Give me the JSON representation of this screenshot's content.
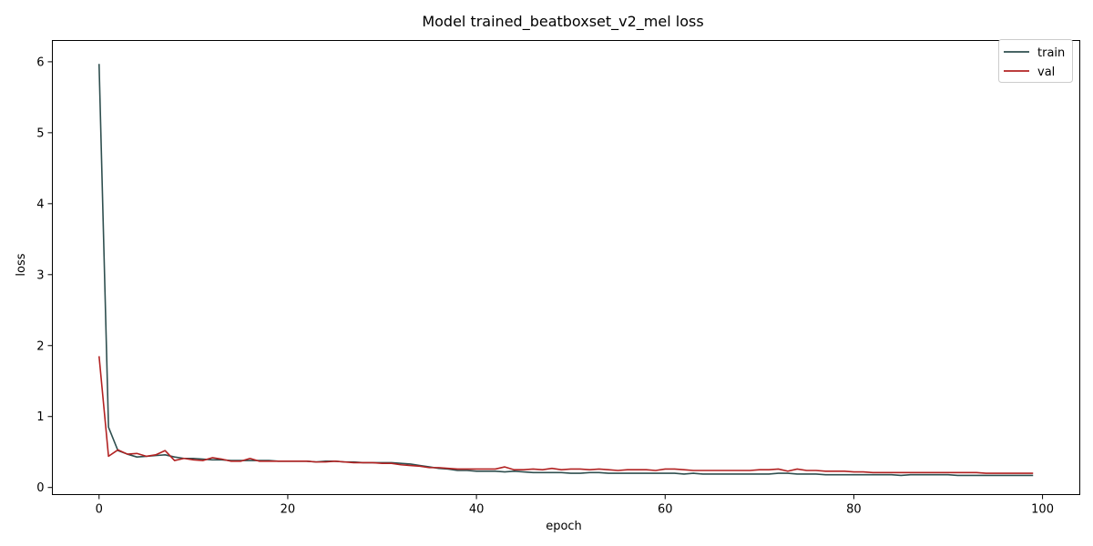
{
  "chart_data": {
    "type": "line",
    "title": "Model trained_beatboxset_v2_mel loss",
    "xlabel": "epoch",
    "ylabel": "loss",
    "xlim": [
      -4.95,
      103.95
    ],
    "ylim": [
      -0.1,
      6.3
    ],
    "xticks": [
      0,
      20,
      40,
      60,
      80,
      100
    ],
    "yticks": [
      0,
      1,
      2,
      3,
      4,
      5,
      6
    ],
    "legend_position": "top-right",
    "grid": false,
    "series": [
      {
        "name": "train",
        "color": "#2f4f4f",
        "values": [
          5.97,
          0.85,
          0.52,
          0.47,
          0.43,
          0.44,
          0.45,
          0.46,
          0.43,
          0.41,
          0.41,
          0.4,
          0.39,
          0.39,
          0.38,
          0.38,
          0.38,
          0.38,
          0.38,
          0.37,
          0.37,
          0.37,
          0.37,
          0.36,
          0.37,
          0.37,
          0.36,
          0.36,
          0.35,
          0.35,
          0.35,
          0.35,
          0.34,
          0.33,
          0.31,
          0.29,
          0.27,
          0.26,
          0.24,
          0.24,
          0.23,
          0.23,
          0.23,
          0.22,
          0.23,
          0.22,
          0.21,
          0.21,
          0.21,
          0.21,
          0.2,
          0.2,
          0.21,
          0.21,
          0.2,
          0.2,
          0.2,
          0.2,
          0.2,
          0.2,
          0.2,
          0.2,
          0.19,
          0.2,
          0.19,
          0.19,
          0.19,
          0.19,
          0.19,
          0.19,
          0.19,
          0.19,
          0.2,
          0.2,
          0.19,
          0.19,
          0.19,
          0.18,
          0.18,
          0.18,
          0.18,
          0.18,
          0.18,
          0.18,
          0.18,
          0.17,
          0.18,
          0.18,
          0.18,
          0.18,
          0.18,
          0.17,
          0.17,
          0.17,
          0.17,
          0.17,
          0.17,
          0.17,
          0.17,
          0.17
        ]
      },
      {
        "name": "val",
        "color": "#b22222",
        "values": [
          1.85,
          0.44,
          0.53,
          0.47,
          0.48,
          0.44,
          0.46,
          0.52,
          0.38,
          0.41,
          0.39,
          0.38,
          0.42,
          0.4,
          0.37,
          0.37,
          0.41,
          0.37,
          0.37,
          0.37,
          0.37,
          0.37,
          0.37,
          0.36,
          0.36,
          0.37,
          0.36,
          0.35,
          0.35,
          0.35,
          0.34,
          0.34,
          0.32,
          0.31,
          0.3,
          0.28,
          0.28,
          0.27,
          0.26,
          0.26,
          0.26,
          0.26,
          0.26,
          0.29,
          0.25,
          0.25,
          0.26,
          0.25,
          0.27,
          0.25,
          0.26,
          0.26,
          0.25,
          0.26,
          0.25,
          0.24,
          0.25,
          0.25,
          0.25,
          0.24,
          0.26,
          0.26,
          0.25,
          0.24,
          0.24,
          0.24,
          0.24,
          0.24,
          0.24,
          0.24,
          0.25,
          0.25,
          0.26,
          0.23,
          0.26,
          0.24,
          0.24,
          0.23,
          0.23,
          0.23,
          0.22,
          0.22,
          0.21,
          0.21,
          0.21,
          0.21,
          0.21,
          0.21,
          0.21,
          0.21,
          0.21,
          0.21,
          0.21,
          0.21,
          0.2,
          0.2,
          0.2,
          0.2,
          0.2,
          0.2
        ]
      }
    ]
  }
}
